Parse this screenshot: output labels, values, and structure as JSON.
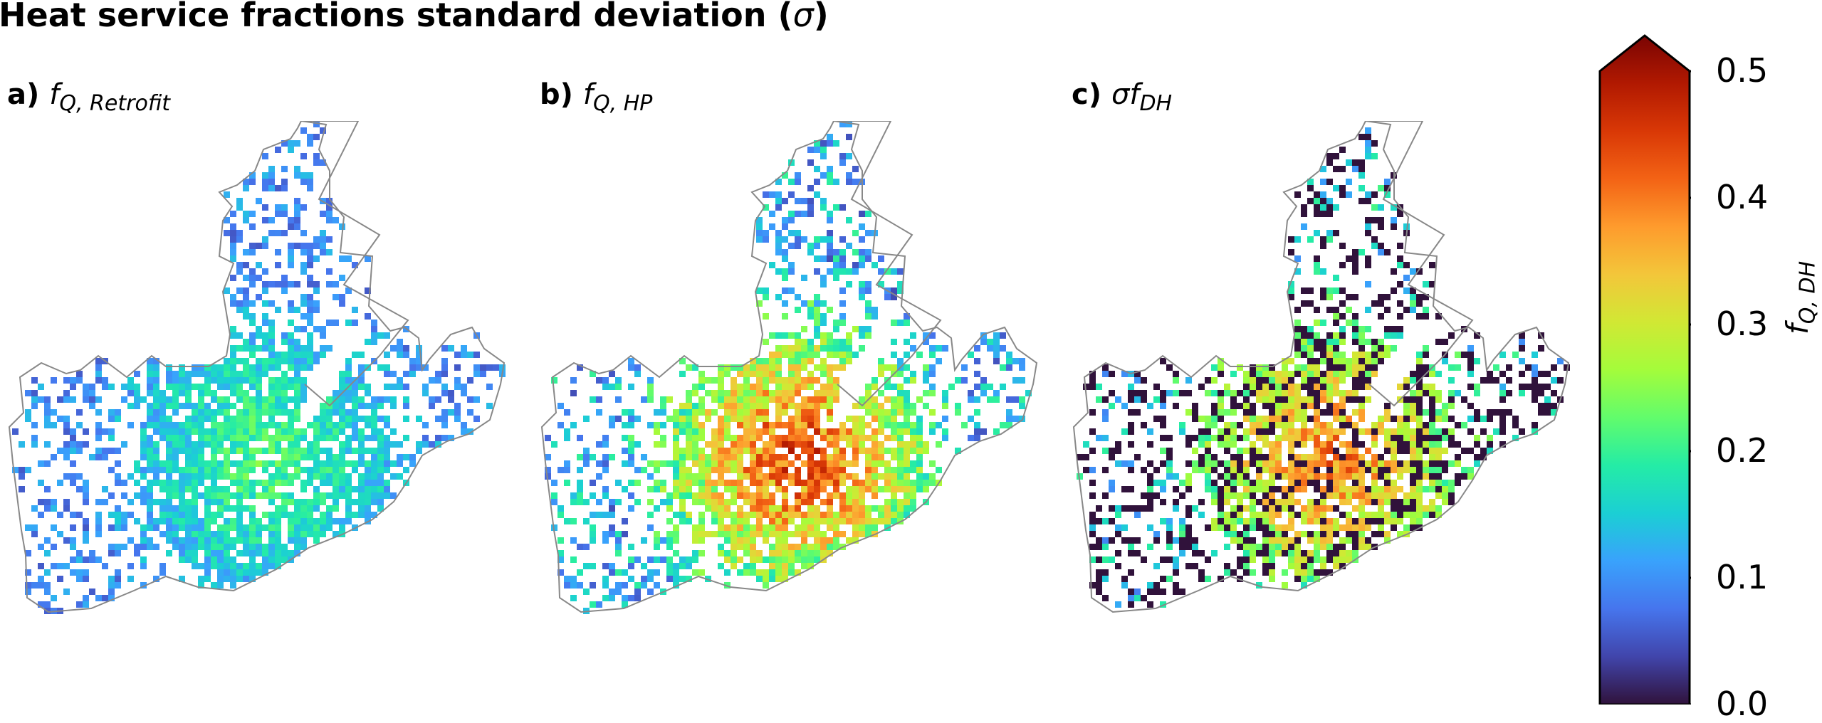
{
  "figure": {
    "title_prefix": "Heat service fractions standard deviation (",
    "title_symbol": "σ",
    "title_suffix": ")"
  },
  "chart_data": [
    {
      "type": "heatmap",
      "panel": "a)",
      "variable_main": "f",
      "variable_sub": "Q, Retrofit",
      "dominant_range": [
        0.05,
        0.22
      ]
    },
    {
      "type": "heatmap",
      "panel": "b)",
      "variable_main": "f",
      "variable_sub": "Q, HP",
      "dominant_range": [
        0.05,
        0.45
      ]
    },
    {
      "type": "heatmap",
      "panel": "c)",
      "variable_main": "σf",
      "variable_sub": "DH",
      "dominant_range": [
        0.0,
        0.42
      ]
    }
  ],
  "colorbar": {
    "label_main": "f",
    "label_sub": "Q, DH",
    "range": [
      0.0,
      0.5
    ],
    "extend": "max",
    "colormap": "turbo",
    "ticks": [
      "0.0",
      "0.1",
      "0.2",
      "0.3",
      "0.4",
      "0.5"
    ],
    "stops": [
      "#30123b",
      "#4145ab",
      "#4675ed",
      "#39a2fc",
      "#1bcfd4",
      "#24eca6",
      "#61fc6c",
      "#a4fc3b",
      "#d1e834",
      "#f3c63a",
      "#fe9b2d",
      "#f36315",
      "#d93806",
      "#b11901",
      "#7a0403"
    ]
  }
}
